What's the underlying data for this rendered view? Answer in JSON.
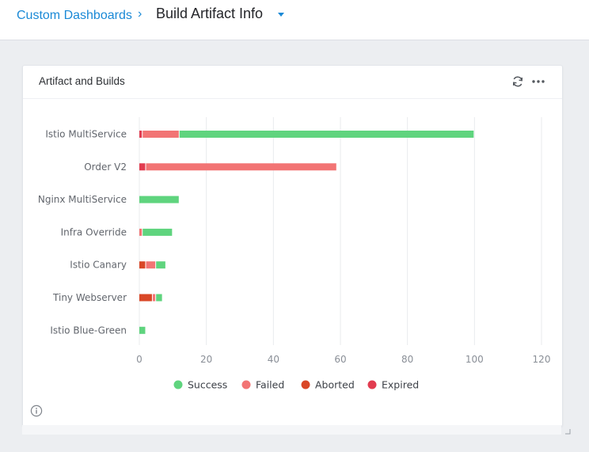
{
  "breadcrumb": {
    "parent": "Custom Dashboards",
    "separator": "›"
  },
  "page": {
    "title": "Build Artifact Info"
  },
  "widget": {
    "title": "Artifact and Builds",
    "icons": {
      "refresh": "refresh-icon",
      "more": "more-icon",
      "info": "info-icon"
    }
  },
  "colors": {
    "Success": "#5fd47e",
    "Failed": "#f27474",
    "Aborted": "#d94727",
    "Expired": "#e23c50",
    "link": "#1a89d6"
  },
  "chart_data": {
    "type": "bar",
    "orientation": "horizontal",
    "stacked": true,
    "categories": [
      "Istio MultiService",
      "Order V2",
      "Nginx MultiService",
      "Infra Override",
      "Istio Canary",
      "Tiny Webserver",
      "Istio Blue-Green"
    ],
    "series": [
      {
        "name": "Success",
        "values": [
          88,
          0,
          12,
          9,
          3,
          2,
          2
        ]
      },
      {
        "name": "Failed",
        "values": [
          11,
          57,
          0,
          1,
          3,
          1,
          0
        ]
      },
      {
        "name": "Aborted",
        "values": [
          0,
          0,
          0,
          0,
          2,
          4,
          0
        ]
      },
      {
        "name": "Expired",
        "values": [
          1,
          2,
          0,
          0,
          0,
          0,
          0
        ]
      }
    ],
    "xlim": [
      0,
      120
    ],
    "xticks": [
      0,
      20,
      40,
      60,
      80,
      100,
      120
    ],
    "grid": "vertical",
    "legend": "bottom"
  }
}
